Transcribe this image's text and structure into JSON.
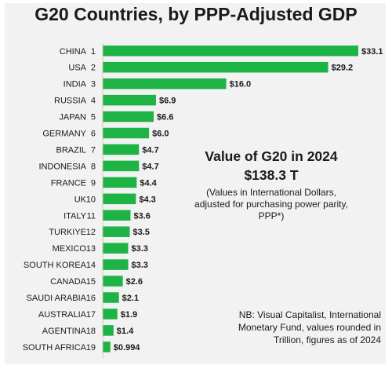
{
  "title": "G20 Countries, by PPP-Adjusted GDP",
  "summary": {
    "heading": "Value of G20 in 2024",
    "total": "$138.3 T",
    "note": "(Values in International Dollars, adjusted for purchasing power parity, PPP*)"
  },
  "source_note": "NB: Visual Capitalist, International Monetary Fund, values rounded in Trillion, figures as of 2024",
  "colors": {
    "bar": "#1db345",
    "background": "#f2f2f2"
  },
  "chart_data": {
    "type": "bar",
    "orientation": "horizontal",
    "categories": [
      "CHINA",
      "USA",
      "INDIA",
      "RUSSIA",
      "JAPAN",
      "GERMANY",
      "BRAZIL",
      "INDONESIA",
      "FRANCE",
      "UK",
      "ITALY",
      "TURKIYE",
      "MEXICO",
      "SOUTH KOREA",
      "CANADA",
      "SAUDI ARABIA",
      "AUSTRALIA",
      "AGENTINA",
      "SOUTH AFRICA"
    ],
    "ranks": [
      "1",
      "2",
      "3",
      "4",
      "5",
      "6",
      "7",
      "8",
      "9",
      "10",
      "11",
      "12",
      "13",
      "14",
      "15",
      "16",
      "17",
      "18",
      "19"
    ],
    "values": [
      33.1,
      29.2,
      16.0,
      6.9,
      6.6,
      6.0,
      4.7,
      4.7,
      4.4,
      4.3,
      3.6,
      3.5,
      3.3,
      3.3,
      2.6,
      2.1,
      1.9,
      1.4,
      0.994
    ],
    "value_labels": [
      "$33.1",
      "$29.2",
      "$16.0",
      "$6.9",
      "$6.6",
      "$6.0",
      "$4.7",
      "$4.7",
      "$4.4",
      "$4.3",
      "$3.6",
      "$3.5",
      "$3.3",
      "$3.3",
      "$2.6",
      "$2.1",
      "$1.9",
      "$1.4",
      "$0.994"
    ],
    "xlim": [
      0,
      33.1
    ],
    "grid": false,
    "legend": "none"
  }
}
